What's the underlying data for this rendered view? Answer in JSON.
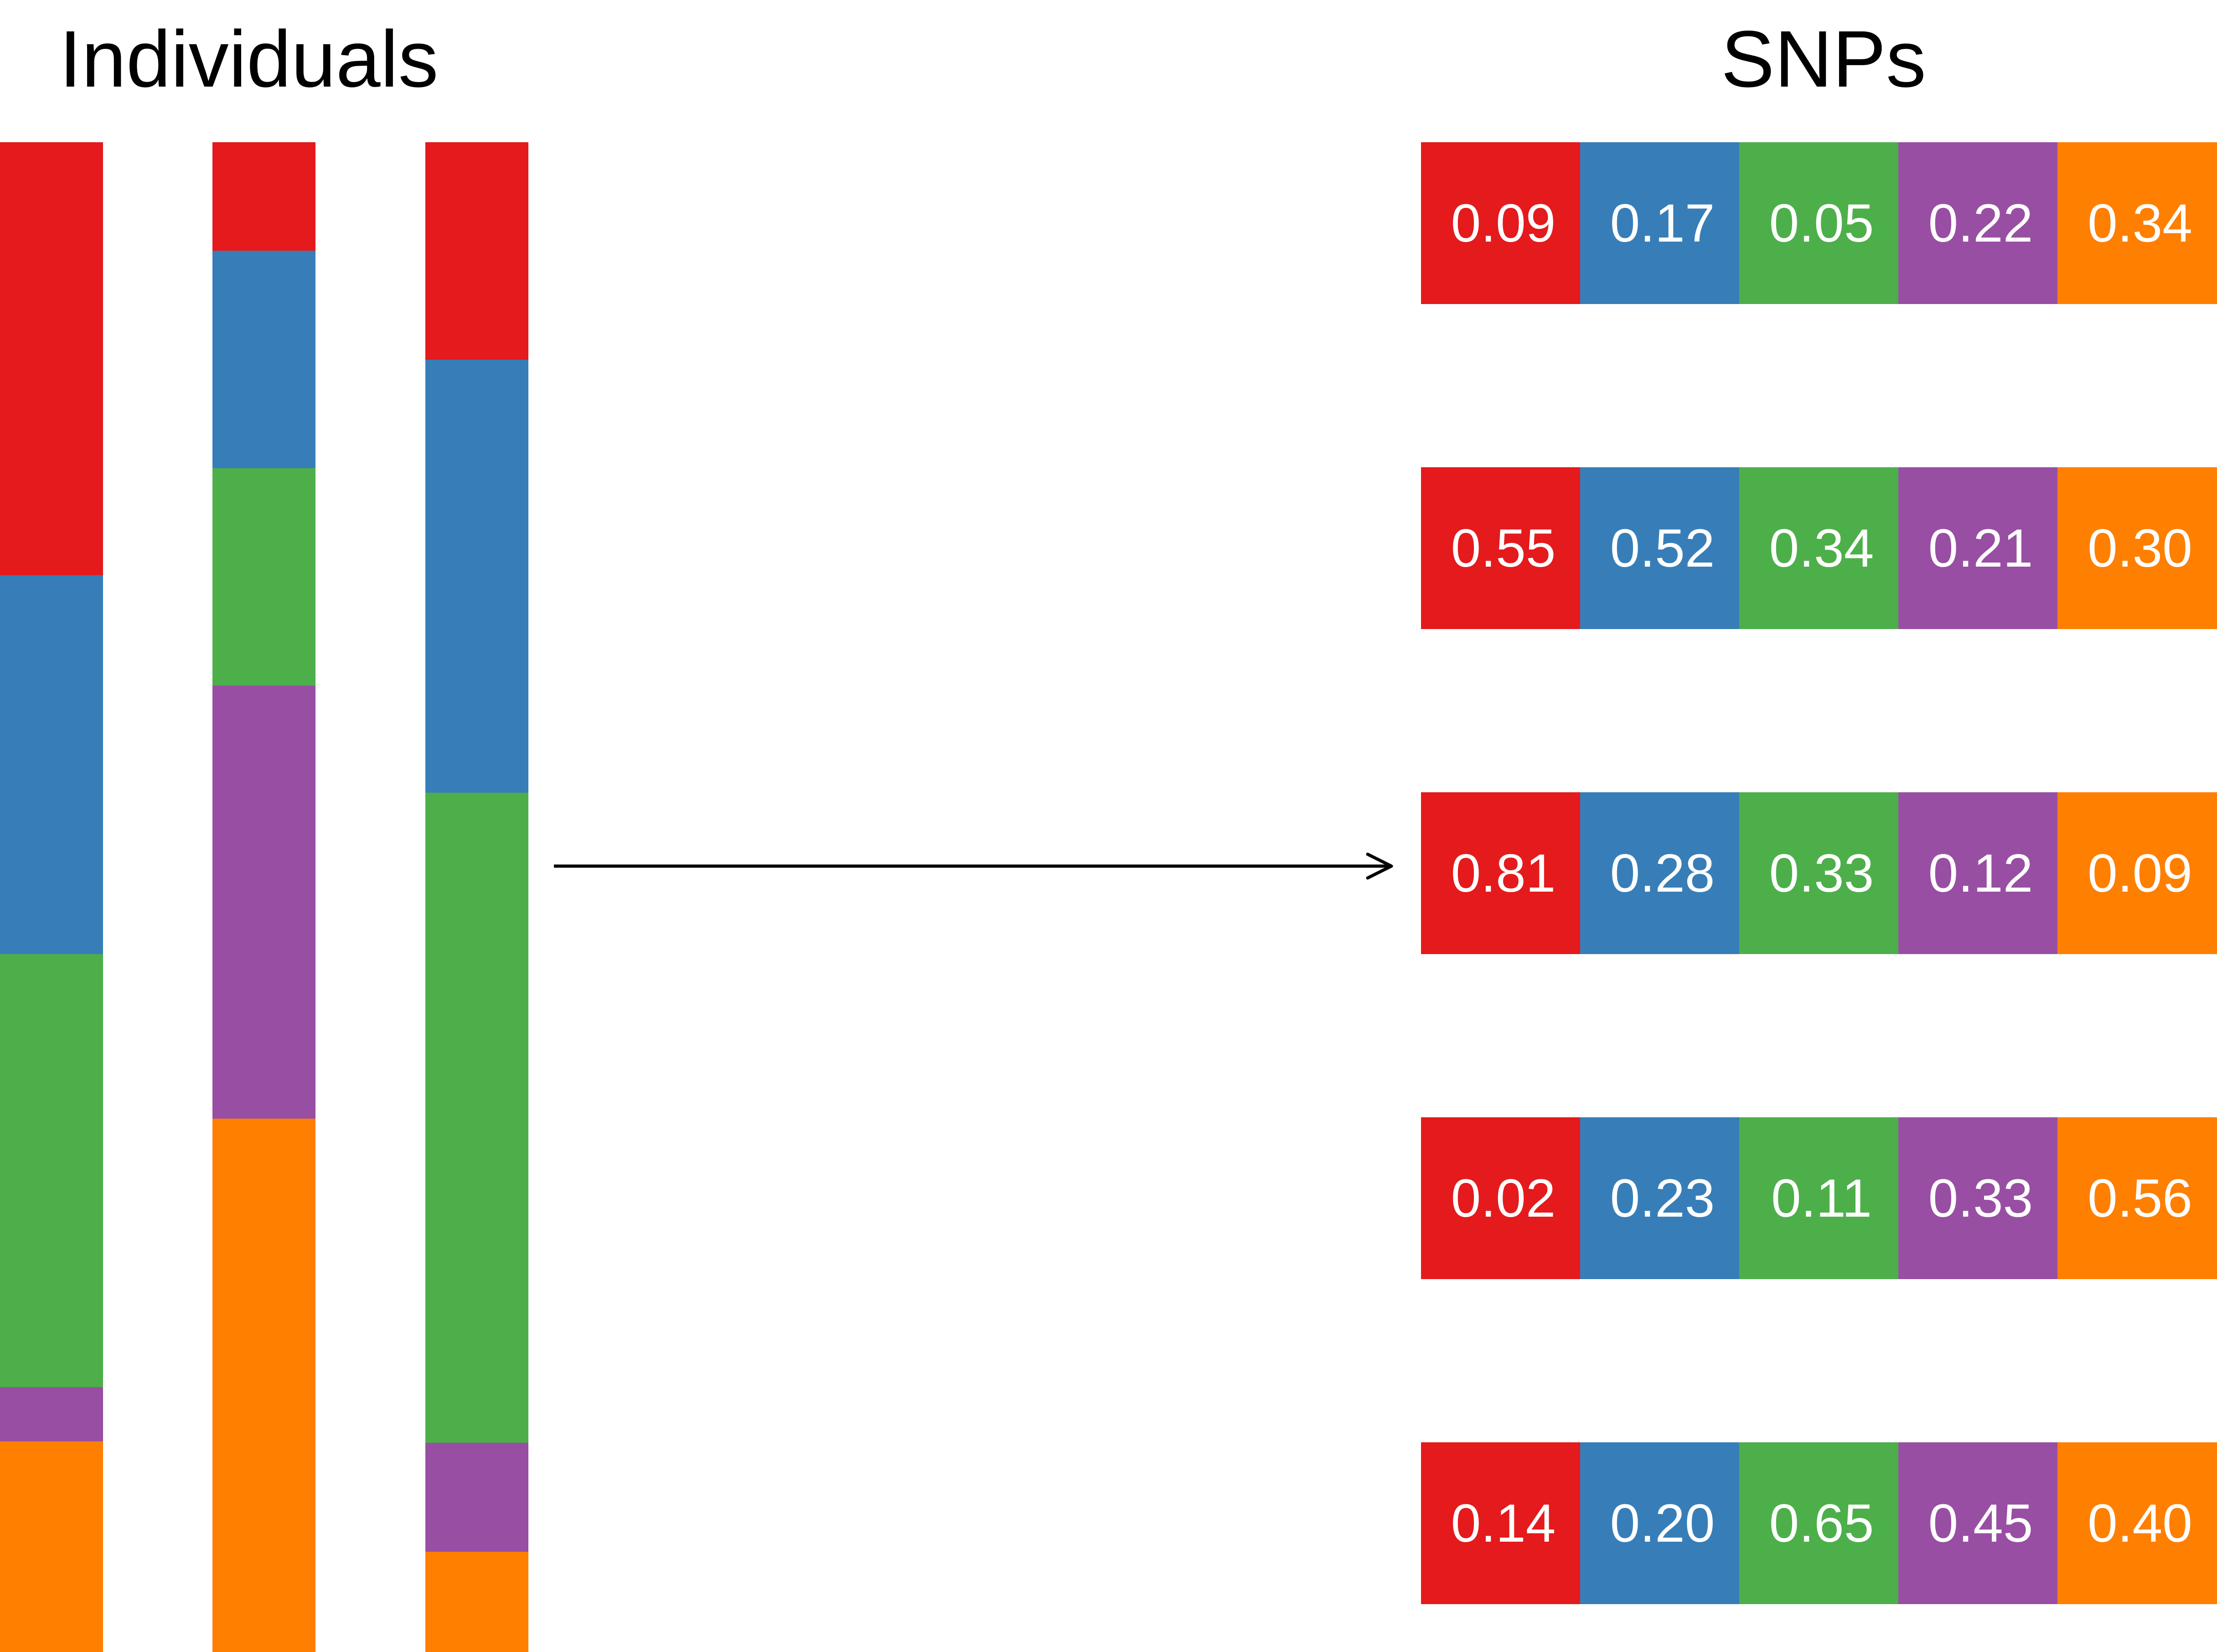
{
  "titles": {
    "individuals": "Individuals",
    "snps": "SNPs"
  },
  "colors": {
    "red": "#e41a1c",
    "blue": "#377eb8",
    "green": "#4daf4a",
    "purple": "#984ea3",
    "orange": "#ff7f00",
    "arrow": "#000000"
  },
  "individuals": [
    {
      "name": "individual-1",
      "segments": [
        {
          "color": "red",
          "proportion": 0.287
        },
        {
          "color": "blue",
          "proportion": 0.251
        },
        {
          "color": "green",
          "proportion": 0.287
        },
        {
          "color": "purple",
          "proportion": 0.036
        },
        {
          "color": "orange",
          "proportion": 0.139
        }
      ]
    },
    {
      "name": "individual-2",
      "segments": [
        {
          "color": "red",
          "proportion": 0.072
        },
        {
          "color": "blue",
          "proportion": 0.144
        },
        {
          "color": "green",
          "proportion": 0.144
        },
        {
          "color": "purple",
          "proportion": 0.287
        },
        {
          "color": "orange",
          "proportion": 0.353
        }
      ]
    },
    {
      "name": "individual-3",
      "segments": [
        {
          "color": "red",
          "proportion": 0.144
        },
        {
          "color": "blue",
          "proportion": 0.287
        },
        {
          "color": "green",
          "proportion": 0.431
        },
        {
          "color": "purple",
          "proportion": 0.072
        },
        {
          "color": "orange",
          "proportion": 0.066
        }
      ]
    }
  ],
  "snps": [
    [
      "0.09",
      "0.17",
      "0.05",
      "0.22",
      "0.34"
    ],
    [
      "0.55",
      "0.52",
      "0.34",
      "0.21",
      "0.30"
    ],
    [
      "0.81",
      "0.28",
      "0.33",
      "0.12",
      "0.09"
    ],
    [
      "0.02",
      "0.23",
      "0.11",
      "0.33",
      "0.56"
    ],
    [
      "0.14",
      "0.20",
      "0.65",
      "0.45",
      "0.40"
    ]
  ],
  "snp_colors": [
    "red",
    "blue",
    "green",
    "purple",
    "orange"
  ]
}
